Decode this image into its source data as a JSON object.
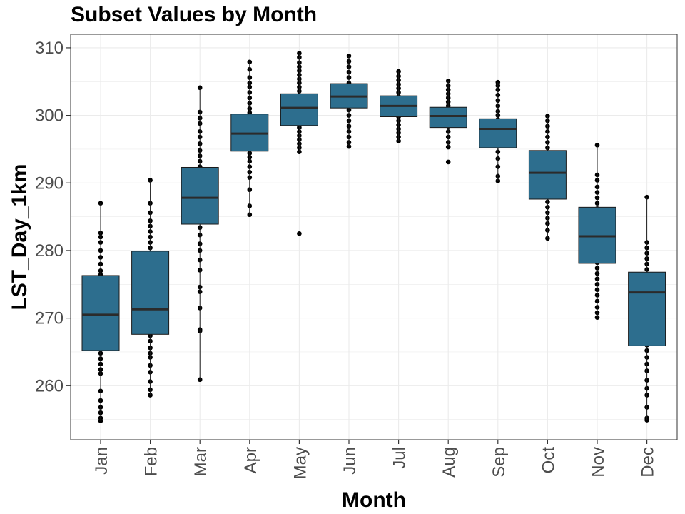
{
  "chart_data": {
    "type": "box",
    "title": "Subset Values by Month",
    "xlabel": "Month",
    "ylabel": "LST_Day_1km",
    "ylim": [
      252,
      312
    ],
    "y_ticks": [
      260,
      270,
      280,
      290,
      300,
      310
    ],
    "grid": true,
    "colors": {
      "box_fill": "#2d6e8e",
      "box_stroke": "#1a1a1a",
      "point": "#000000",
      "grid": "#ebebeb",
      "panel_border": "#333333"
    },
    "categories": [
      "Jan",
      "Feb",
      "Mar",
      "Apr",
      "May",
      "Jun",
      "Jul",
      "Aug",
      "Sep",
      "Oct",
      "Nov",
      "Dec"
    ],
    "boxes": [
      {
        "month": "Jan",
        "whisker_low": 254.8,
        "q1": 265.2,
        "median": 270.5,
        "q3": 276.3,
        "whisker_high": 287.0
      },
      {
        "month": "Feb",
        "whisker_low": 258.6,
        "q1": 267.6,
        "median": 271.3,
        "q3": 279.9,
        "whisker_high": 290.4
      },
      {
        "month": "Mar",
        "whisker_low": 260.9,
        "q1": 283.9,
        "median": 287.8,
        "q3": 292.3,
        "whisker_high": 304.1
      },
      {
        "month": "Apr",
        "whisker_low": 285.3,
        "q1": 294.7,
        "median": 297.3,
        "q3": 300.2,
        "whisker_high": 307.9
      },
      {
        "month": "May",
        "whisker_low": 294.6,
        "q1": 298.5,
        "median": 301.1,
        "q3": 303.2,
        "whisker_high": 309.2
      },
      {
        "month": "Jun",
        "whisker_low": 295.4,
        "q1": 301.1,
        "median": 302.8,
        "q3": 304.7,
        "whisker_high": 308.8
      },
      {
        "month": "Jul",
        "whisker_low": 296.2,
        "q1": 299.8,
        "median": 301.4,
        "q3": 302.9,
        "whisker_high": 306.5
      },
      {
        "month": "Aug",
        "whisker_low": 295.3,
        "q1": 298.2,
        "median": 299.9,
        "q3": 301.2,
        "whisker_high": 305.1
      },
      {
        "month": "Sep",
        "whisker_low": 290.3,
        "q1": 295.2,
        "median": 298.0,
        "q3": 299.5,
        "whisker_high": 304.9
      },
      {
        "month": "Oct",
        "whisker_low": 281.8,
        "q1": 287.6,
        "median": 291.5,
        "q3": 294.8,
        "whisker_high": 299.9
      },
      {
        "month": "Nov",
        "whisker_low": 270.1,
        "q1": 278.1,
        "median": 282.1,
        "q3": 286.4,
        "whisker_high": 295.6
      },
      {
        "month": "Dec",
        "whisker_low": 254.9,
        "q1": 265.9,
        "median": 273.8,
        "q3": 276.8,
        "whisker_high": 287.9
      }
    ],
    "points": [
      [
        254.8,
        255.2,
        256.0,
        256.8,
        257.8,
        259.2,
        261.8,
        262.4,
        263.2,
        264.0,
        264.8,
        265.4,
        266.2,
        267.0,
        268.0,
        268.8,
        269.6,
        270.4,
        271.2,
        272.0,
        272.8,
        273.4,
        274.0,
        274.6,
        275.2,
        275.8,
        276.4,
        277.0,
        278.0,
        279.0,
        280.0,
        281.2,
        282.0,
        282.6,
        287.0
      ],
      [
        258.6,
        259.4,
        260.6,
        262.0,
        263.0,
        264.2,
        264.8,
        265.6,
        266.6,
        267.4,
        268.0,
        268.8,
        269.6,
        270.4,
        271.0,
        271.6,
        272.4,
        273.2,
        274.0,
        274.8,
        275.6,
        276.4,
        277.2,
        278.0,
        278.8,
        279.6,
        280.4,
        281.2,
        282.0,
        282.8,
        283.6,
        284.4,
        285.6,
        287.0,
        290.4
      ],
      [
        260.9,
        268.1,
        268.3,
        271.5,
        273.9,
        274.6,
        277.1,
        278.6,
        280.0,
        281.0,
        282.3,
        283.4,
        284.2,
        284.8,
        285.5,
        286.2,
        286.8,
        287.4,
        288.0,
        288.6,
        289.2,
        289.9,
        290.6,
        291.2,
        291.8,
        292.4,
        293.2,
        294.0,
        294.8,
        295.8,
        296.8,
        297.6,
        298.8,
        299.6,
        300.5,
        304.1
      ],
      [
        285.3,
        286.6,
        289.0,
        290.8,
        291.6,
        292.4,
        293.2,
        293.8,
        294.4,
        295.0,
        295.6,
        296.2,
        296.8,
        297.4,
        298.0,
        298.6,
        299.2,
        299.8,
        300.4,
        301.0,
        301.8,
        302.6,
        303.4,
        304.2,
        304.8,
        305.6,
        306.8,
        307.9
      ],
      [
        282.5,
        294.6,
        295.2,
        295.8,
        296.4,
        297.0,
        297.6,
        298.2,
        298.8,
        299.4,
        300.0,
        300.6,
        301.2,
        301.8,
        302.4,
        303.0,
        303.6,
        304.2,
        304.8,
        305.4,
        306.0,
        306.6,
        307.2,
        307.8,
        308.6,
        309.2
      ],
      [
        295.4,
        296.0,
        296.8,
        297.6,
        298.4,
        299.2,
        300.0,
        300.8,
        301.6,
        302.4,
        303.2,
        304.0,
        304.8,
        305.6,
        306.4,
        307.2,
        308.0,
        308.8
      ],
      [
        296.2,
        296.8,
        297.4,
        298.0,
        298.6,
        299.2,
        299.8,
        300.4,
        301.0,
        301.6,
        302.2,
        302.8,
        303.4,
        304.0,
        304.6,
        305.2,
        305.8,
        306.5
      ],
      [
        293.1,
        295.3,
        296.0,
        296.8,
        297.6,
        298.4,
        299.0,
        299.6,
        300.2,
        300.8,
        301.4,
        302.0,
        302.6,
        303.2,
        303.8,
        304.4,
        305.1
      ],
      [
        290.3,
        291.0,
        292.4,
        293.6,
        294.6,
        295.4,
        296.2,
        297.0,
        297.8,
        298.6,
        299.4,
        300.0,
        300.6,
        301.4,
        302.2,
        303.0,
        303.8,
        304.4,
        304.9
      ],
      [
        281.8,
        283.0,
        284.0,
        284.8,
        285.6,
        286.4,
        287.2,
        288.0,
        288.8,
        289.6,
        290.4,
        291.2,
        292.0,
        292.8,
        293.6,
        294.4,
        295.2,
        296.0,
        296.8,
        297.6,
        298.4,
        299.2,
        299.9
      ],
      [
        270.1,
        270.8,
        271.6,
        272.5,
        273.4,
        274.2,
        275.0,
        275.8,
        276.6,
        277.4,
        278.2,
        279.0,
        279.8,
        280.6,
        281.4,
        282.2,
        283.0,
        283.8,
        284.6,
        285.4,
        286.2,
        287.0,
        287.8,
        288.6,
        289.4,
        290.4,
        291.2,
        295.6
      ],
      [
        254.9,
        255.2,
        256.8,
        258.6,
        259.6,
        260.8,
        262.2,
        263.2,
        264.2,
        265.2,
        266.0,
        266.8,
        267.8,
        268.8,
        269.6,
        270.4,
        271.4,
        272.4,
        273.2,
        274.0,
        274.8,
        275.6,
        276.4,
        277.2,
        278.0,
        278.8,
        279.6,
        280.4,
        281.2,
        287.9
      ]
    ]
  }
}
